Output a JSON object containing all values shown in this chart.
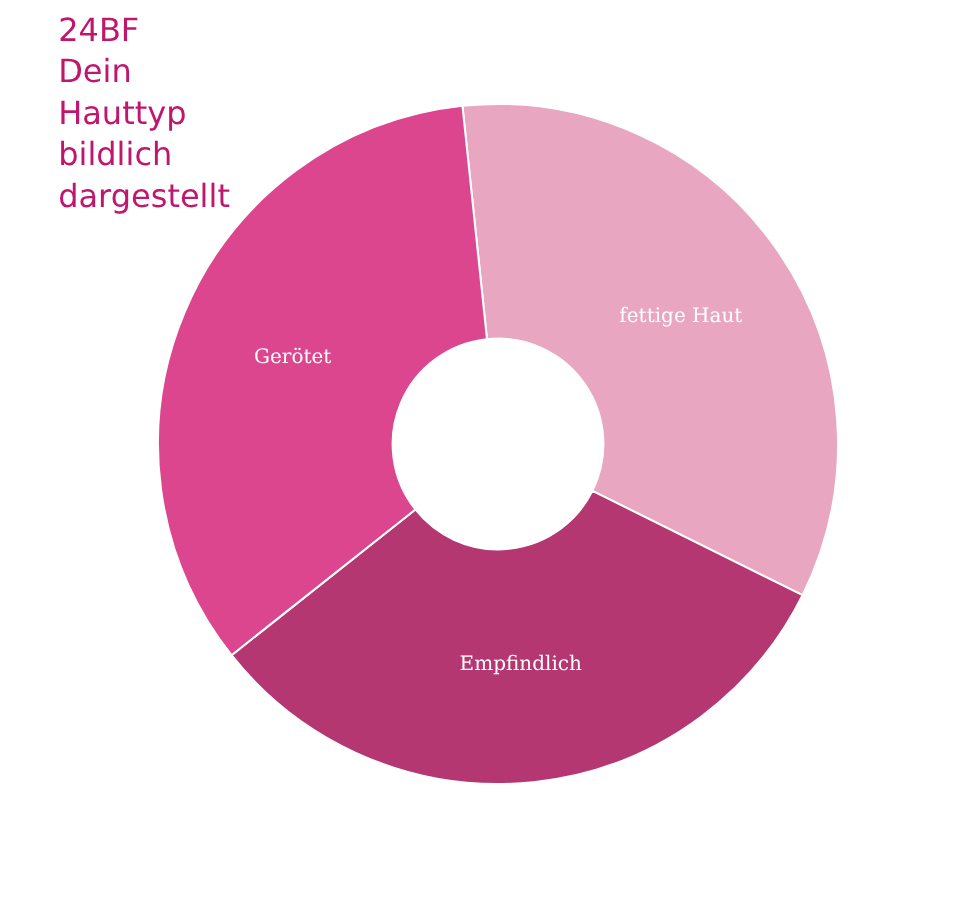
{
  "chart_data": {
    "type": "donut",
    "title": "24BF Dein Hauttyp bildlich dargestellt",
    "categories": [
      "fettige Haut",
      "Empfindlich",
      "Gerötet"
    ],
    "values": [
      34,
      32,
      34
    ],
    "colors": [
      "#e9a6c0",
      "#b43772",
      "#dc468e"
    ],
    "legend": false
  }
}
